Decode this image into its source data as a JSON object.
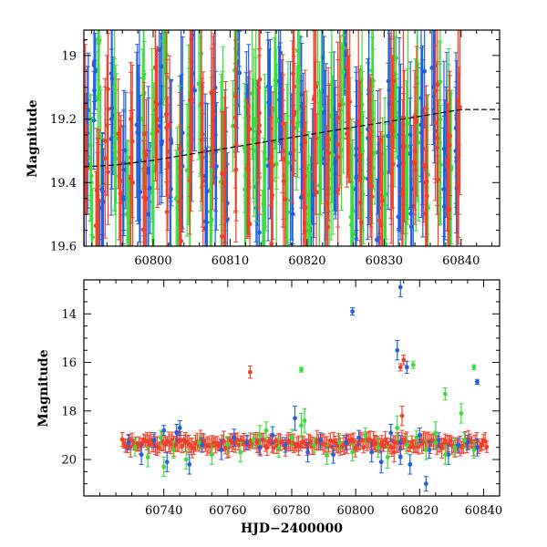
{
  "colors": {
    "blue": "#1f5fe0",
    "green": "#3ddc3d",
    "red": "#f0402a",
    "trend": "#000000"
  },
  "chart_data": [
    {
      "type": "scatter",
      "panel": "top",
      "xlabel": "",
      "ylabel": "Magnitude",
      "xlim": [
        60791,
        60845
      ],
      "ylim": [
        19.6,
        18.92
      ],
      "y_inverted": true,
      "xticks": [
        60800,
        60810,
        60820,
        60830,
        60840
      ],
      "yticks": [
        19,
        19.2,
        19.4,
        19.6
      ],
      "y_tick_labels": [
        "19",
        "19.2",
        "19.4",
        "19.6"
      ],
      "grid": false,
      "trend_line": {
        "x": [
          60791,
          60795,
          60800,
          60805,
          60810,
          60815,
          60820,
          60825,
          60830,
          60835,
          60840,
          60845
        ],
        "y": [
          19.35,
          19.345,
          19.33,
          19.31,
          19.29,
          19.27,
          19.25,
          19.23,
          19.21,
          19.19,
          19.17,
          19.17
        ]
      },
      "series": [
        {
          "color_key": "blue",
          "x": [
            60791.5,
            60792.5,
            60793.3,
            60794.6,
            60796.2,
            60798.1,
            60799.4,
            60801.0,
            60802.3,
            60803.7,
            60805.2,
            60806.8,
            60808.1,
            60809.4,
            60811.0,
            60812.2,
            60813.6,
            60815.1,
            60816.5,
            60818.0,
            60819.3,
            60820.8,
            60822.2,
            60823.6,
            60825.1,
            60826.4,
            60827.9,
            60829.3,
            60830.7,
            60832.1,
            60833.6,
            60835.0,
            60836.4,
            60837.9,
            60839.3
          ],
          "y": [
            19.32,
            19.05,
            19.48,
            19.2,
            19.36,
            19.28,
            19.5,
            19.15,
            19.42,
            19.3,
            19.1,
            19.38,
            19.25,
            19.46,
            19.02,
            19.33,
            19.4,
            19.2,
            19.12,
            19.35,
            19.28,
            19.44,
            19.18,
            19.3,
            19.05,
            19.38,
            19.26,
            19.48,
            19.15,
            19.34,
            19.42,
            19.22,
            19.1,
            19.36,
            19.3
          ],
          "err": [
            0.18,
            0.12,
            0.2,
            0.22,
            0.19,
            0.25,
            0.2,
            0.22,
            0.21,
            0.24,
            0.2,
            0.23,
            0.2,
            0.22,
            0.14,
            0.24,
            0.2,
            0.22,
            0.16,
            0.23,
            0.2,
            0.18,
            0.24,
            0.2,
            0.16,
            0.22,
            0.25,
            0.2,
            0.22,
            0.24,
            0.2,
            0.25,
            0.18,
            0.22,
            0.2
          ]
        },
        {
          "color_key": "green",
          "x": [
            60792.0,
            60793.0,
            60795.0,
            60796.8,
            60798.6,
            60800.1,
            60801.6,
            60803.2,
            60804.6,
            60806.1,
            60807.5,
            60809.0,
            60810.6,
            60812.0,
            60813.1,
            60814.4,
            60816.0,
            60817.4,
            60818.8,
            60820.2,
            60821.6,
            60823.1,
            60824.5,
            60825.8,
            60827.2,
            60828.6,
            60830.0,
            60831.5,
            60832.9,
            60834.3,
            60835.7,
            60837.2,
            60838.6
          ],
          "y": [
            19.4,
            19.1,
            19.25,
            19.45,
            19.2,
            19.35,
            19.05,
            19.48,
            19.28,
            19.16,
            19.42,
            19.3,
            19.12,
            19.38,
            19.22,
            19.46,
            19.2,
            19.34,
            19.08,
            19.44,
            19.26,
            19.36,
            19.14,
            19.4,
            19.3,
            19.2,
            19.45,
            19.1,
            19.32,
            19.24,
            19.48,
            19.18,
            19.36
          ],
          "err": [
            0.2,
            0.16,
            0.24,
            0.18,
            0.22,
            0.25,
            0.16,
            0.2,
            0.24,
            0.22,
            0.2,
            0.25,
            0.2,
            0.22,
            0.24,
            0.2,
            0.22,
            0.25,
            0.16,
            0.2,
            0.24,
            0.22,
            0.18,
            0.2,
            0.25,
            0.22,
            0.2,
            0.16,
            0.24,
            0.22,
            0.2,
            0.22,
            0.24
          ]
        },
        {
          "color_key": "red",
          "x": [
            60791.2,
            60792.8,
            60794.0,
            60795.6,
            60797.3,
            60798.9,
            60800.5,
            60801.9,
            60803.4,
            60804.9,
            60806.4,
            60807.8,
            60809.2,
            60810.8,
            60812.4,
            60813.8,
            60815.4,
            60816.9,
            60818.3,
            60819.7,
            60821.1,
            60822.6,
            60824.0,
            60825.4,
            60826.9,
            60828.2,
            60829.6,
            60831.1,
            60832.5,
            60834.0,
            60835.4,
            60836.9,
            60838.3,
            60839.7
          ],
          "y": [
            19.3,
            19.44,
            19.22,
            19.38,
            19.27,
            19.42,
            19.2,
            19.34,
            19.46,
            19.25,
            19.32,
            19.14,
            19.4,
            19.28,
            19.36,
            19.22,
            19.45,
            19.3,
            19.18,
            19.38,
            19.26,
            19.42,
            19.32,
            19.2,
            19.36,
            19.28,
            19.44,
            19.24,
            19.34,
            19.3,
            19.4,
            19.26,
            19.35,
            19.28
          ],
          "err": [
            0.2,
            0.18,
            0.22,
            0.2,
            0.24,
            0.2,
            0.22,
            0.21,
            0.18,
            0.24,
            0.22,
            0.2,
            0.22,
            0.24,
            0.2,
            0.22,
            0.18,
            0.24,
            0.2,
            0.22,
            0.24,
            0.2,
            0.22,
            0.2,
            0.24,
            0.22,
            0.2,
            0.24,
            0.22,
            0.2,
            0.22,
            0.24,
            0.2,
            0.22
          ]
        }
      ]
    },
    {
      "type": "scatter",
      "panel": "bottom",
      "xlabel": "HJD−2400000",
      "ylabel": "Magnitude",
      "xlim": [
        60715,
        60845
      ],
      "ylim": [
        21.5,
        12.6
      ],
      "y_inverted": true,
      "xticks": [
        60740,
        60760,
        60780,
        60800,
        60820,
        60840
      ],
      "yticks": [
        14,
        16,
        18,
        20
      ],
      "y_tick_labels": [
        "14",
        "16",
        "18",
        "20"
      ],
      "grid": false,
      "series": [
        {
          "color_key": "blue",
          "x": [
            60729,
            60733,
            60737,
            60741,
            60744,
            60748,
            60752,
            60758,
            60762,
            60766,
            60770,
            60774,
            60778,
            60781,
            60785,
            60789,
            60793,
            60797,
            60801,
            60805,
            60808,
            60811,
            60814,
            60817,
            60820,
            60823,
            60826,
            60829,
            60832,
            60835,
            60838,
            60740,
            60745,
            60799,
            60814,
            60813,
            60816,
            60822,
            60838,
            60814
          ],
          "y": [
            19.3,
            19.8,
            19.2,
            20.1,
            18.9,
            20.2,
            19.4,
            19.6,
            19.1,
            19.3,
            19.5,
            19.0,
            19.4,
            18.3,
            19.7,
            19.2,
            19.8,
            19.3,
            19.1,
            19.7,
            20.1,
            18.9,
            19.3,
            20.2,
            19.0,
            19.6,
            19.2,
            19.8,
            19.4,
            19.3,
            19.5,
            18.8,
            18.7,
            13.9,
            12.9,
            15.5,
            16.2,
            21.0,
            16.8,
            19.9
          ],
          "err": [
            0.3,
            0.4,
            0.3,
            0.4,
            0.35,
            0.4,
            0.3,
            0.4,
            0.35,
            0.3,
            0.3,
            0.35,
            0.3,
            0.5,
            0.4,
            0.3,
            0.35,
            0.3,
            0.3,
            0.4,
            0.45,
            0.35,
            0.3,
            0.4,
            0.3,
            0.35,
            0.3,
            0.4,
            0.3,
            0.3,
            0.35,
            0.2,
            0.3,
            0.15,
            0.4,
            0.4,
            0.25,
            0.3,
            0.1,
            0.3
          ]
        },
        {
          "color_key": "green",
          "x": [
            60731,
            60735,
            60739,
            60743,
            60747,
            60751,
            60755,
            60760,
            60764,
            60768,
            60772,
            60776,
            60780,
            60783,
            60787,
            60791,
            60795,
            60799,
            60803,
            60807,
            60810,
            60813,
            60816,
            60819,
            60822,
            60825,
            60828,
            60831,
            60834,
            60837,
            60740,
            60783,
            60818,
            60828,
            60837,
            60833,
            60825,
            60770,
            60784
          ],
          "y": [
            19.5,
            19.9,
            19.1,
            19.6,
            20.0,
            19.3,
            19.8,
            19.4,
            19.7,
            19.2,
            18.8,
            19.5,
            19.1,
            18.6,
            19.4,
            19.8,
            19.3,
            19.7,
            19.0,
            19.5,
            19.9,
            18.7,
            19.4,
            19.1,
            19.6,
            19.3,
            19.8,
            19.5,
            19.2,
            19.6,
            20.3,
            16.3,
            16.1,
            17.3,
            16.2,
            18.1,
            18.9,
            19.0,
            18.4
          ],
          "err": [
            0.35,
            0.4,
            0.3,
            0.35,
            0.4,
            0.3,
            0.4,
            0.35,
            0.4,
            0.3,
            0.35,
            0.4,
            0.35,
            0.5,
            0.3,
            0.4,
            0.3,
            0.35,
            0.3,
            0.4,
            0.45,
            0.5,
            0.35,
            0.3,
            0.4,
            0.3,
            0.4,
            0.35,
            0.3,
            0.35,
            0.4,
            0.1,
            0.15,
            0.25,
            0.1,
            0.4,
            0.45,
            0.4,
            0.5
          ]
        },
        {
          "color_key": "red",
          "x": [
            60767,
            60814,
            60815,
            60814.5,
            60812,
            60806
          ],
          "y": [
            16.4,
            16.2,
            15.9,
            18.2,
            19.7,
            19.3
          ],
          "err": [
            0.25,
            0.15,
            0.2,
            0.4,
            0.4,
            0.3
          ]
        }
      ],
      "dense_band": {
        "color_key": "red",
        "x_start": 60727,
        "x_end": 60841,
        "y_center": 19.35,
        "y_spread": 0.18,
        "err": 0.3
      }
    }
  ]
}
